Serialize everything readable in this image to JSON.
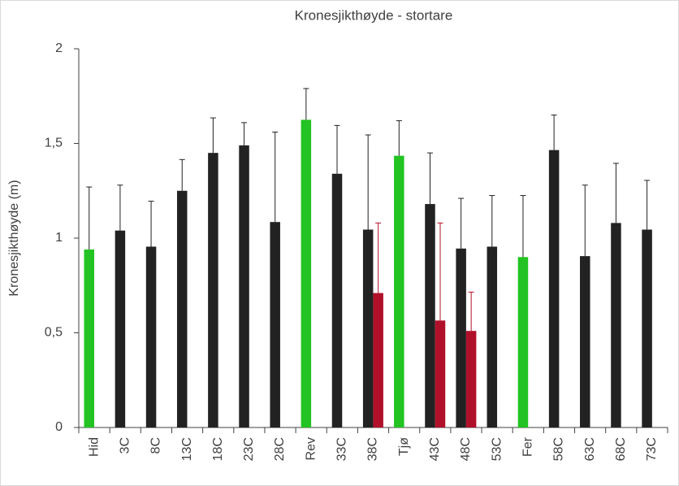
{
  "chart_data": {
    "type": "bar",
    "title": "Kronesjikthøyde - stortare",
    "y_label": "Kronesjikthøyde (m)",
    "categories": [
      "Hid",
      "3C",
      "8C",
      "13C",
      "18C",
      "23C",
      "28C",
      "Rev",
      "33C",
      "38C",
      "Tjø",
      "43C",
      "48C",
      "53C",
      "Fer",
      "58C",
      "63C",
      "68C",
      "73C"
    ],
    "series": [
      {
        "colors": [
          "#22c322",
          "#222222",
          "#222222",
          "#222222",
          "#222222",
          "#222222",
          "#222222",
          "#22c322",
          "#222222",
          "#222222",
          "#22c322",
          "#222222",
          "#222222",
          "#222222",
          "#22c322",
          "#222222",
          "#222222",
          "#222222",
          "#222222"
        ],
        "values": [
          0.94,
          1.04,
          0.955,
          1.25,
          1.45,
          1.49,
          1.085,
          1.625,
          1.34,
          1.045,
          1.435,
          1.18,
          0.945,
          0.955,
          0.9,
          1.465,
          0.905,
          1.08,
          1.045
        ],
        "errors": [
          0.33,
          0.24,
          0.24,
          0.165,
          0.185,
          0.12,
          0.475,
          0.165,
          0.255,
          0.5,
          0.185,
          0.27,
          0.265,
          0.27,
          0.325,
          0.185,
          0.375,
          0.315,
          0.26
        ]
      },
      {
        "color": "#b0102a",
        "values": [
          null,
          null,
          null,
          null,
          null,
          null,
          null,
          null,
          null,
          0.71,
          null,
          0.565,
          0.51,
          null,
          null,
          null,
          null,
          null,
          null
        ],
        "errors": [
          null,
          null,
          null,
          null,
          null,
          null,
          null,
          null,
          null,
          0.37,
          null,
          0.515,
          0.205,
          null,
          null,
          null,
          null,
          null,
          null
        ]
      }
    ],
    "ylim": [
      0,
      2
    ],
    "yticks": [
      0,
      {
        "value": 0.5,
        "label": "0,5"
      },
      1,
      {
        "value": 1.5,
        "label": "1,5"
      },
      2
    ]
  }
}
